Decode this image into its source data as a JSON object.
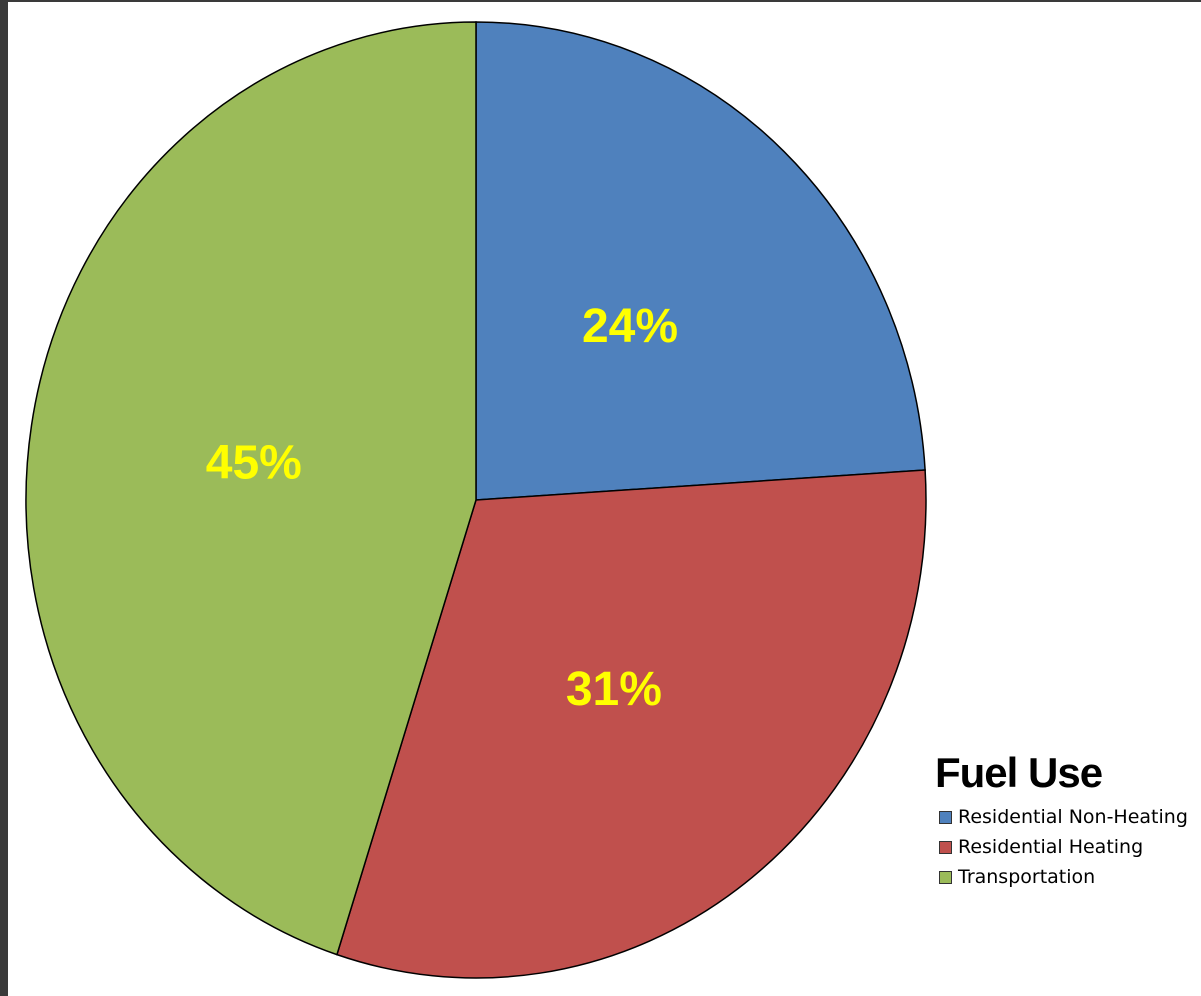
{
  "chart_data": {
    "type": "pie",
    "title": "",
    "legend_title": "Fuel Use",
    "legend_position": "bottom-right",
    "slices": [
      {
        "name": "Residential Non-Heating",
        "value": 24,
        "label": "24%",
        "color": "#4f81bd"
      },
      {
        "name": "Residential Heating",
        "value": 31,
        "label": "31%",
        "color": "#c0504d"
      },
      {
        "name": "Transportation",
        "value": 45,
        "label": "45%",
        "color": "#9bbb59"
      }
    ],
    "label_color": "#ffff00"
  }
}
